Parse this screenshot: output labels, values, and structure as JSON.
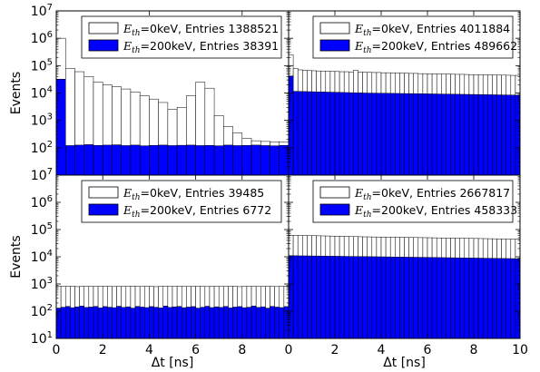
{
  "chart_data": [
    {
      "type": "bar",
      "panel": "top-left",
      "yscale": "log",
      "xlim": [
        0,
        5
      ],
      "ylim": [
        10,
        10000000
      ],
      "xlabel": "",
      "ylabel": "Events",
      "bin_width": 0.2,
      "legend_position": "top-right",
      "series": [
        {
          "name_sym": "E",
          "name_sub": "th",
          "name_rest": "=0keV, Entries 1388521",
          "color": "#ffffff",
          "values": [
            1000000,
            80000,
            60000,
            40000,
            25000,
            20000,
            17000,
            14000,
            11000,
            8000,
            6000,
            4500,
            2500,
            3000,
            8000,
            25000,
            15000,
            1500,
            600,
            350,
            220,
            180,
            170,
            165,
            160,
            160,
            160,
            158,
            155,
            160,
            158,
            155,
            160,
            155,
            155,
            158,
            160,
            155,
            160,
            160,
            155,
            158,
            160,
            155,
            155,
            160,
            155,
            158,
            155,
            155
          ]
        },
        {
          "name_sym": "E",
          "name_sub": "th",
          "name_rest": "=200keV, Entries 38391",
          "color": "#0000ff",
          "values": [
            32000,
            120,
            125,
            130,
            122,
            125,
            128,
            120,
            125,
            118,
            122,
            125,
            120,
            123,
            125,
            120,
            122,
            118,
            125,
            120,
            122,
            125,
            120,
            118,
            122,
            125,
            120,
            122,
            118,
            125,
            120,
            122,
            125,
            118,
            122,
            120,
            125,
            120,
            118,
            122,
            125,
            120,
            122,
            118,
            125,
            120,
            122,
            125,
            120,
            118
          ]
        }
      ]
    },
    {
      "type": "bar",
      "panel": "top-right",
      "yscale": "log",
      "xlim": [
        0,
        10
      ],
      "ylim": [
        10,
        10000000
      ],
      "xlabel": "",
      "ylabel": "",
      "bin_width": 0.2,
      "legend_position": "top-right",
      "series": [
        {
          "name_sym": "E",
          "name_sub": "th",
          "name_rest": "=0keV, Entries 4011884",
          "color": "#ffffff",
          "values": [
            250000,
            80000,
            70000,
            68000,
            66000,
            65000,
            64000,
            63000,
            62000,
            62000,
            61000,
            60000,
            60000,
            59000,
            68000,
            58000,
            57000,
            57000,
            56000,
            56000,
            55000,
            55000,
            54000,
            54000,
            53000,
            53000,
            52000,
            52000,
            51000,
            51000,
            50000,
            50000,
            49500,
            49000,
            49000,
            48500,
            48000,
            48000,
            47500,
            47000,
            47000,
            46500,
            46000,
            46000,
            45500,
            45000,
            45000,
            44500,
            44000,
            44000
          ]
        },
        {
          "name_sym": "E",
          "name_sub": "th",
          "name_rest": "=200keV, Entries 489662",
          "color": "#0000ff",
          "values": [
            42000,
            11500,
            11400,
            11300,
            11200,
            11100,
            11000,
            10900,
            10800,
            10700,
            10600,
            10500,
            10400,
            10300,
            10200,
            10100,
            10000,
            9950,
            9900,
            9850,
            9800,
            9750,
            9700,
            9650,
            9600,
            9550,
            9500,
            9450,
            9400,
            9350,
            9300,
            9250,
            9200,
            9150,
            9100,
            9050,
            9000,
            8950,
            8900,
            8850,
            8800,
            8750,
            8700,
            8650,
            8600,
            8550,
            8500,
            8450,
            8400,
            8350
          ]
        }
      ]
    },
    {
      "type": "bar",
      "panel": "bottom-left",
      "yscale": "log",
      "xlim": [
        0,
        10
      ],
      "ylim": [
        10,
        10000000
      ],
      "xlabel": "Δt [ns]",
      "ylabel": "Events",
      "bin_width": 0.2,
      "legend_position": "top-right",
      "series": [
        {
          "name_sym": "E",
          "name_sub": "th",
          "name_rest": "=0keV, Entries 39485",
          "color": "#ffffff",
          "values": [
            820,
            830,
            810,
            840,
            800,
            820,
            830,
            815,
            825,
            810,
            835,
            820,
            805,
            830,
            815,
            825,
            840,
            810,
            820,
            830,
            815,
            800,
            825,
            835,
            810,
            820,
            830,
            815,
            825,
            810,
            840,
            820,
            805,
            830,
            815,
            825,
            810,
            835,
            820,
            800,
            830,
            815,
            825,
            810,
            820,
            830,
            815,
            805,
            825,
            835
          ]
        },
        {
          "name_sym": "E",
          "name_sub": "th",
          "name_rest": "=200keV, Entries 6772",
          "color": "#0000ff",
          "values": [
            130,
            140,
            150,
            135,
            145,
            155,
            138,
            142,
            150,
            132,
            148,
            140,
            135,
            152,
            138,
            145,
            130,
            150,
            142,
            136,
            148,
            140,
            132,
            155,
            138,
            145,
            150,
            135,
            142,
            148,
            130,
            140,
            152,
            136,
            145,
            138,
            150,
            132,
            142,
            148,
            135,
            140,
            155,
            138,
            145,
            130,
            150,
            142,
            136,
            148
          ]
        }
      ]
    },
    {
      "type": "bar",
      "panel": "bottom-right",
      "yscale": "log",
      "xlim": [
        0,
        10
      ],
      "ylim": [
        10,
        10000000
      ],
      "xlabel": "Δt [ns]",
      "ylabel": "",
      "bin_width": 0.2,
      "legend_position": "top-right",
      "series": [
        {
          "name_sym": "E",
          "name_sub": "th",
          "name_rest": "=0keV, Entries 2667817",
          "color": "#ffffff",
          "values": [
            62000,
            61500,
            61000,
            60500,
            60000,
            59500,
            59000,
            58500,
            58000,
            57500,
            57000,
            56500,
            56000,
            55500,
            55000,
            54500,
            54000,
            53800,
            53500,
            53200,
            53000,
            52700,
            52400,
            52100,
            51800,
            51500,
            51200,
            50900,
            50600,
            50300,
            50000,
            49700,
            49400,
            49100,
            48800,
            48500,
            48200,
            47900,
            47600,
            47300,
            47000,
            46700,
            46400,
            46100,
            45800,
            45500,
            45200,
            44900,
            44600,
            44300
          ]
        },
        {
          "name_sym": "E",
          "name_sub": "th",
          "name_rest": "=200keV, Entries 458333",
          "color": "#0000ff",
          "values": [
            11000,
            10900,
            10850,
            10800,
            10750,
            10700,
            10650,
            10600,
            10550,
            10500,
            10450,
            10400,
            10350,
            10300,
            10250,
            10200,
            10150,
            10100,
            10050,
            10000,
            9950,
            9900,
            9850,
            9800,
            9750,
            9700,
            9650,
            9600,
            9550,
            9500,
            9450,
            9400,
            9350,
            9300,
            9250,
            9200,
            9150,
            9100,
            9050,
            9000,
            8950,
            8900,
            8850,
            8800,
            8750,
            8700,
            8650,
            8600,
            8550,
            8500
          ]
        }
      ]
    }
  ],
  "y_ticks": [
    "10^1",
    "10^2",
    "10^3",
    "10^4",
    "10^5",
    "10^6",
    "10^7"
  ],
  "x_ticks_top_left": [
    "0",
    "2",
    "4"
  ],
  "x_ticks_bottom": [
    "0",
    "2",
    "4",
    "6",
    "8"
  ],
  "x_ticks_bottom_right": [
    "0",
    "2",
    "4",
    "6",
    "8",
    "10"
  ]
}
